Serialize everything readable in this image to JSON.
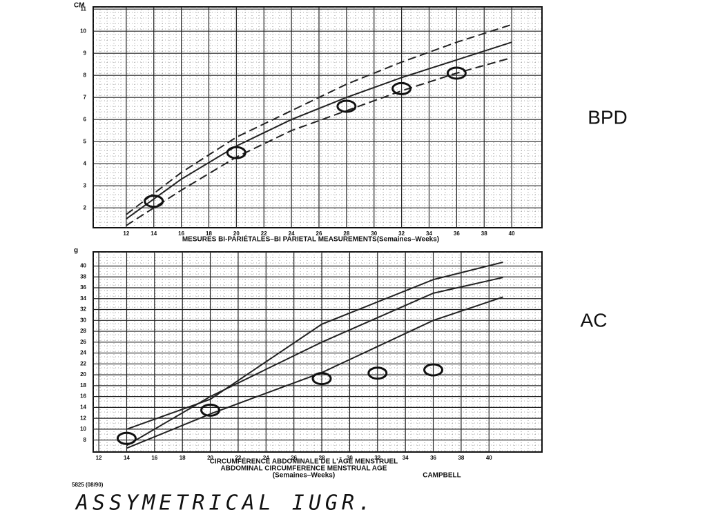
{
  "chart_data": [
    {
      "type": "line",
      "y_unit": "CM",
      "annotation": "BPD",
      "xlabel": "MESURES BI-PARIÉTALES–BI PARIETAL MEASUREMENTS(Semaines–Weeks)",
      "x": [
        12,
        16,
        20,
        24,
        28,
        32,
        36,
        40
      ],
      "series": [
        {
          "color": "#222222",
          "dashed": true,
          "values": [
            1.7,
            3.6,
            5.2,
            6.4,
            7.6,
            8.6,
            9.5,
            10.3
          ]
        },
        {
          "color": "#222222",
          "dashed": false,
          "values": [
            1.5,
            3.3,
            4.8,
            6.0,
            7.0,
            7.9,
            8.7,
            9.5
          ]
        },
        {
          "color": "#222222",
          "dashed": true,
          "values": [
            1.2,
            2.8,
            4.3,
            5.5,
            6.4,
            7.3,
            8.1,
            8.8
          ]
        }
      ],
      "measurements": {
        "x": [
          14,
          20,
          28,
          32,
          36
        ],
        "values": [
          2.3,
          4.5,
          6.6,
          7.4,
          8.1
        ]
      },
      "xlim": [
        9.6,
        42.2
      ],
      "ylim": [
        1.1,
        11.1
      ],
      "xticks": [
        12,
        14,
        16,
        18,
        20,
        22,
        24,
        26,
        28,
        30,
        32,
        34,
        36,
        38,
        40
      ],
      "yticks": [
        2,
        3,
        4,
        5,
        6,
        7,
        8,
        9,
        10,
        11
      ],
      "grid": true
    },
    {
      "type": "line",
      "y_unit": "g",
      "annotation": "AC",
      "xlabel_lines": [
        "CIRCUMFÉRENCE ABDOMINALE DE L'ÂGE MENSTRUEL",
        "ABDOMINAL CIRCUMFERENCE MENSTRUAL AGE",
        "(Semaines–Weeks)"
      ],
      "source": "CAMPBELL",
      "x": [
        14,
        20,
        28,
        36,
        41
      ],
      "series": [
        {
          "color": "#222222",
          "dashed": false,
          "values": [
            10,
            15.5,
            29.3,
            37.5,
            40.7
          ]
        },
        {
          "color": "#222222",
          "dashed": false,
          "values": [
            7,
            16,
            26,
            35,
            37.9
          ]
        },
        {
          "color": "#222222",
          "dashed": false,
          "values": [
            6.5,
            12.8,
            20.4,
            30,
            34.3
          ]
        }
      ],
      "measurements": {
        "x": [
          14,
          20,
          28,
          32,
          36
        ],
        "values": [
          8.3,
          13.5,
          19.3,
          20.3,
          20.9
        ]
      },
      "xlim": [
        11.6,
        43.8
      ],
      "ylim": [
        5.8,
        42.6
      ],
      "xticks": [
        12,
        14,
        16,
        18,
        20,
        22,
        24,
        26,
        28,
        30,
        32,
        34,
        36,
        38,
        40
      ],
      "yticks": [
        8,
        10,
        12,
        14,
        16,
        18,
        20,
        22,
        24,
        26,
        28,
        30,
        32,
        34,
        36,
        38,
        40
      ],
      "grid": true
    }
  ],
  "footer": {
    "code": "5825 (08/90)",
    "note": "ASSYMETRICAL IUGR."
  }
}
